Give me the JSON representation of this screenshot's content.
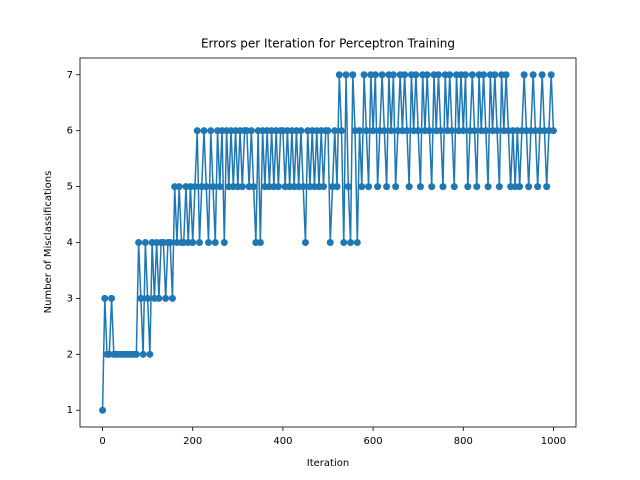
{
  "chart_data": {
    "type": "line",
    "title": "Errors per Iteration for Perceptron Training",
    "x_label": "Iteration",
    "y_label": "Number of Misclassifications",
    "color": "#1f77b4",
    "marker": "o",
    "xlim": [
      -50,
      1050
    ],
    "xticks": [
      0,
      200,
      400,
      600,
      800,
      1000
    ],
    "ylim": [
      0.7,
      7.3
    ],
    "yticks": [
      1,
      2,
      3,
      4,
      5,
      6,
      7
    ],
    "x": [
      0,
      5,
      10,
      15,
      20,
      25,
      30,
      35,
      40,
      45,
      50,
      55,
      60,
      65,
      70,
      75,
      80,
      85,
      90,
      95,
      100,
      105,
      110,
      115,
      120,
      125,
      130,
      135,
      140,
      145,
      150,
      155,
      160,
      165,
      170,
      175,
      180,
      185,
      190,
      195,
      200,
      205,
      210,
      215,
      220,
      225,
      230,
      235,
      240,
      245,
      250,
      255,
      260,
      265,
      270,
      275,
      280,
      285,
      290,
      295,
      300,
      305,
      310,
      315,
      320,
      325,
      330,
      335,
      340,
      345,
      350,
      355,
      360,
      365,
      370,
      375,
      380,
      385,
      390,
      395,
      400,
      405,
      410,
      415,
      420,
      425,
      430,
      435,
      440,
      445,
      450,
      455,
      460,
      465,
      470,
      475,
      480,
      485,
      490,
      495,
      500,
      505,
      510,
      515,
      520,
      525,
      530,
      535,
      540,
      545,
      550,
      555,
      560,
      565,
      570,
      575,
      580,
      585,
      590,
      595,
      600,
      605,
      610,
      615,
      620,
      625,
      630,
      635,
      640,
      645,
      650,
      655,
      660,
      665,
      670,
      675,
      680,
      685,
      690,
      695,
      700,
      705,
      710,
      715,
      720,
      725,
      730,
      735,
      740,
      745,
      750,
      755,
      760,
      765,
      770,
      775,
      780,
      785,
      790,
      795,
      800,
      805,
      810,
      815,
      820,
      825,
      830,
      835,
      840,
      845,
      850,
      855,
      860,
      865,
      870,
      875,
      880,
      885,
      890,
      895,
      900,
      905,
      910,
      915,
      920,
      925,
      930,
      935,
      940,
      945,
      950,
      955,
      960,
      965,
      970,
      975,
      980,
      985,
      990,
      995,
      1000
    ],
    "values": [
      1,
      3,
      2,
      2,
      3,
      2,
      2,
      2,
      2,
      2,
      2,
      2,
      2,
      2,
      2,
      2,
      4,
      3,
      2,
      4,
      3,
      2,
      4,
      3,
      4,
      3,
      4,
      4,
      3,
      4,
      4,
      3,
      5,
      4,
      5,
      4,
      4,
      5,
      4,
      5,
      4,
      5,
      6,
      4,
      5,
      6,
      5,
      4,
      6,
      5,
      4,
      6,
      5,
      6,
      4,
      6,
      5,
      6,
      5,
      6,
      5,
      6,
      5,
      6,
      6,
      5,
      6,
      5,
      4,
      6,
      4,
      6,
      5,
      6,
      5,
      6,
      5,
      6,
      5,
      6,
      6,
      5,
      6,
      5,
      6,
      5,
      6,
      5,
      6,
      5,
      4,
      6,
      5,
      6,
      5,
      6,
      5,
      6,
      5,
      6,
      6,
      4,
      5,
      6,
      5,
      7,
      6,
      4,
      7,
      5,
      4,
      7,
      6,
      4,
      6,
      5,
      7,
      6,
      5,
      7,
      6,
      7,
      5,
      6,
      7,
      6,
      5,
      7,
      6,
      7,
      5,
      6,
      7,
      6,
      7,
      6,
      5,
      7,
      6,
      7,
      6,
      5,
      7,
      6,
      7,
      6,
      5,
      7,
      6,
      7,
      6,
      5,
      7,
      6,
      7,
      6,
      5,
      7,
      6,
      7,
      6,
      7,
      5,
      6,
      7,
      6,
      5,
      7,
      6,
      7,
      6,
      5,
      7,
      6,
      7,
      6,
      5,
      7,
      6,
      7,
      6,
      5,
      6,
      5,
      6,
      5,
      6,
      7,
      6,
      5,
      6,
      7,
      6,
      5,
      6,
      7,
      6,
      5,
      6,
      7,
      6
    ]
  }
}
